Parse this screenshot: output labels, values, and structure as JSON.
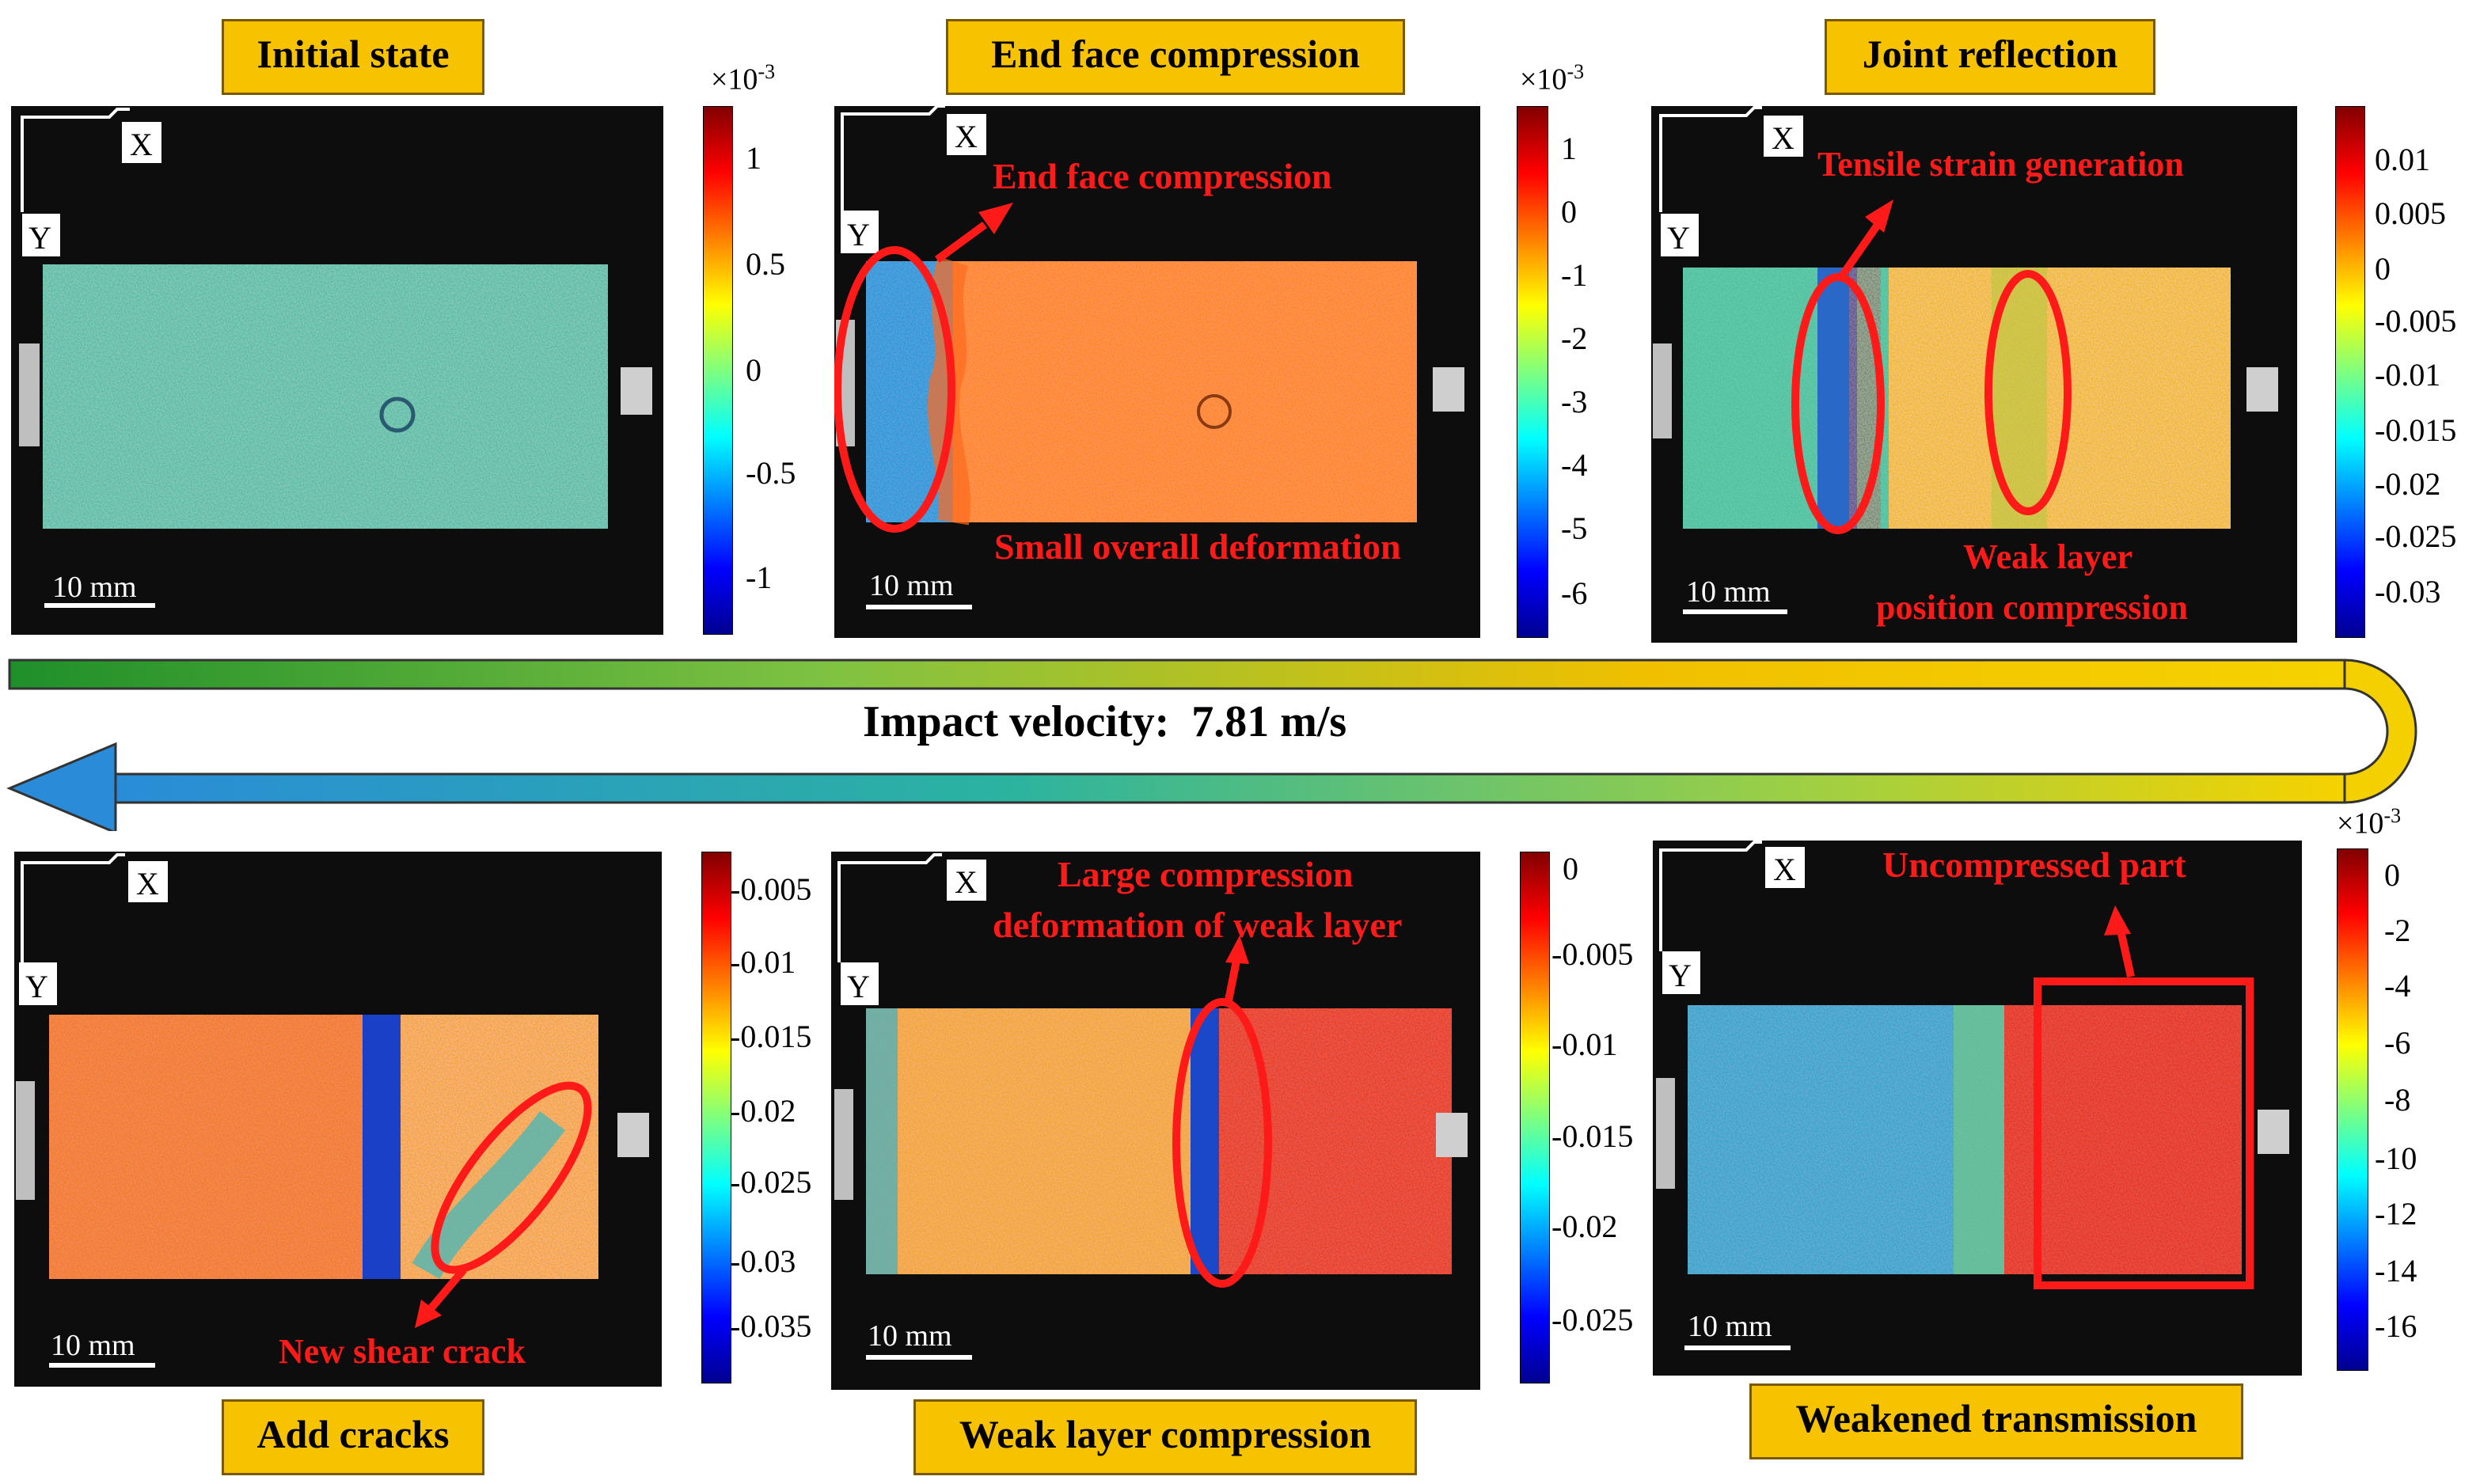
{
  "figure": {
    "velocity_label": "Impact velocity:",
    "velocity_value": "7.81 m/s",
    "axis_x": "X",
    "axis_y": "Y",
    "scale_bar": "10 mm",
    "exponent": "×10",
    "exponent_power": "-3"
  },
  "panels": [
    {
      "title": "Initial state",
      "ticks": [
        "1",
        "0.5",
        "0",
        "-0.5",
        "-1"
      ],
      "has_exponent": true,
      "annotations": []
    },
    {
      "title": "End face compression",
      "ticks": [
        "1",
        "0",
        "-1",
        "-2",
        "-3",
        "-4",
        "-5",
        "-6"
      ],
      "has_exponent": true,
      "annotations": [
        "End face compression",
        "Small overall deformation"
      ]
    },
    {
      "title": "Joint reflection",
      "ticks": [
        "0.01",
        "0.005",
        "0",
        "-0.005",
        "-0.01",
        "-0.015",
        "-0.02",
        "-0.025",
        "-0.03"
      ],
      "has_exponent": false,
      "annotations": [
        "Tensile strain generation",
        "Weak layer",
        "position compression"
      ]
    },
    {
      "title": "Add cracks",
      "ticks": [
        "-0.005",
        "-0.01",
        "-0.015",
        "-0.02",
        "-0.025",
        "-0.03",
        "-0.035"
      ],
      "has_exponent": false,
      "annotations": [
        "New shear crack"
      ]
    },
    {
      "title": "Weak layer compression",
      "ticks": [
        "0",
        "-0.005",
        "-0.01",
        "-0.015",
        "-0.02",
        "-0.025"
      ],
      "has_exponent": false,
      "annotations": [
        "Large compression",
        "deformation of weak layer"
      ]
    },
    {
      "title": "Weakened transmission",
      "ticks": [
        "0",
        "-2",
        "-4",
        "-6",
        "-8",
        "-10",
        "-12",
        "-14",
        "-16"
      ],
      "has_exponent": true,
      "annotations": [
        "Uncompressed part"
      ]
    }
  ],
  "colors": {
    "title_fill": "#f7c200",
    "annotation_red": "#ff1a1a",
    "arrow_start": "#2e9d2e",
    "arrow_end": "#2a8cd8"
  }
}
